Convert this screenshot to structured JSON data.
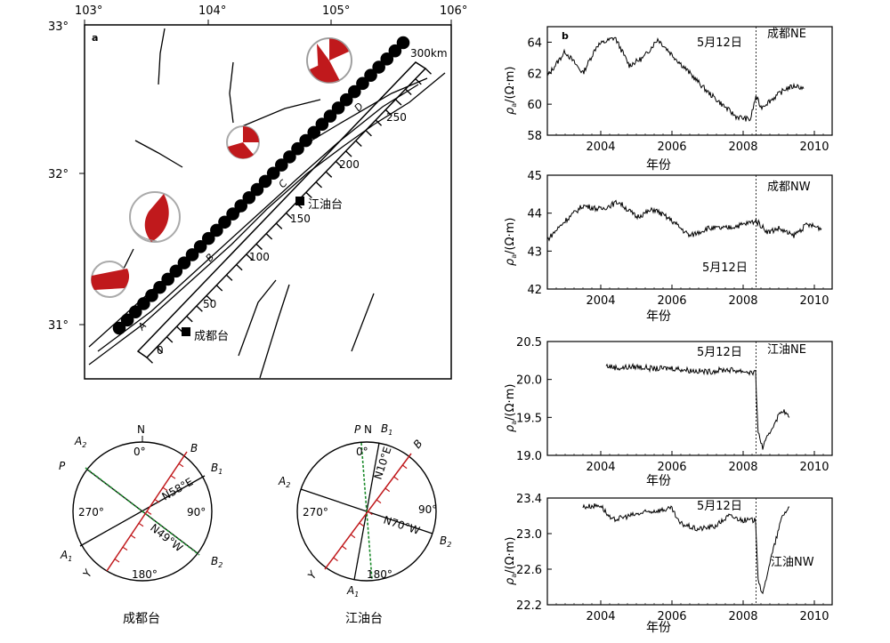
{
  "map": {
    "panel_label": "a",
    "lon_ticks": [
      "103°",
      "104°",
      "105°",
      "106°"
    ],
    "lat_ticks": [
      "33°",
      "32°",
      "31°"
    ],
    "distance_labels": [
      "0",
      "50",
      "100",
      "150",
      "200",
      "250",
      "300km"
    ],
    "segment_labels": [
      "A",
      "B",
      "C",
      "D"
    ],
    "stations": [
      "成都台",
      "江油台"
    ],
    "bead_count": 36,
    "mechanism_color": "#c0191c"
  },
  "rose": {
    "chengdu": {
      "title": "成都台",
      "labels": {
        "N": "N",
        "zero": "0°",
        "ninety": "90°",
        "oneeighty": "180°",
        "twoseventy": "270°",
        "A1": "A",
        "A1sub": "1",
        "A2": "A",
        "A2sub": "2",
        "B": "B",
        "B1": "B",
        "B1sub": "1",
        "B2": "B",
        "B2sub": "2",
        "P": "P",
        "Y": "Y",
        "dir1": "N58°E",
        "dir2": "N49°W"
      }
    },
    "jiangyou": {
      "title": "江油台",
      "labels": {
        "N": "N",
        "zero": "0°",
        "ninety": "90°",
        "oneeighty": "180°",
        "twoseventy": "270°",
        "A1": "A",
        "A1sub": "1",
        "A2": "A",
        "A2sub": "2",
        "B": "B",
        "B1": "B",
        "B1sub": "1",
        "B2": "B",
        "B2sub": "2",
        "P": "P",
        "Y": "Y",
        "dir1": "N10°E",
        "dir2": "N70°W"
      }
    }
  },
  "chart_data": [
    {
      "type": "line",
      "panel_label": "b",
      "title": "成都NE",
      "xlabel": "年份",
      "ylabel_rho": "ρ",
      "ylabel_sub": "a",
      "ylabel_unit": "/(Ω·m)",
      "x_range": [
        2002.5,
        2010.5
      ],
      "ylim": [
        58,
        65
      ],
      "xticks": [
        2004,
        2006,
        2008,
        2010
      ],
      "yticks": [
        58,
        60,
        62,
        64
      ],
      "event_x": 2008.36,
      "event_label": "5月12日",
      "series": [
        {
          "x": [
            2002.5,
            2003.0,
            2003.5,
            2003.9,
            2004.4,
            2004.8,
            2005.2,
            2005.6,
            2006.0,
            2006.5,
            2007.0,
            2007.5,
            2007.8,
            2008.2,
            2008.36,
            2008.5,
            2008.8,
            2009.2,
            2009.5,
            2009.7
          ],
          "y": [
            61.8,
            63.4,
            62.0,
            63.8,
            64.3,
            62.5,
            63.0,
            64.2,
            63.2,
            62.0,
            60.8,
            59.8,
            59.2,
            59.0,
            60.5,
            59.8,
            60.3,
            61.0,
            61.2,
            61.0
          ]
        }
      ]
    },
    {
      "type": "line",
      "title": "成都NW",
      "xlabel": "年份",
      "ylabel_rho": "ρ",
      "ylabel_sub": "a",
      "ylabel_unit": "/(Ω·m)",
      "x_range": [
        2002.5,
        2010.5
      ],
      "ylim": [
        42,
        45
      ],
      "xticks": [
        2004,
        2006,
        2008,
        2010
      ],
      "yticks": [
        42,
        43,
        44,
        45
      ],
      "event_x": 2008.36,
      "event_label": "5月12日",
      "series": [
        {
          "x": [
            2002.5,
            2003.0,
            2003.5,
            2004.0,
            2004.5,
            2005.0,
            2005.5,
            2006.0,
            2006.5,
            2007.0,
            2007.5,
            2008.0,
            2008.36,
            2008.7,
            2009.0,
            2009.4,
            2009.8,
            2010.2
          ],
          "y": [
            43.3,
            43.8,
            44.2,
            44.1,
            44.3,
            43.9,
            44.1,
            43.8,
            43.4,
            43.6,
            43.6,
            43.7,
            43.8,
            43.5,
            43.6,
            43.4,
            43.7,
            43.6
          ]
        }
      ]
    },
    {
      "type": "line",
      "title": "江油NE",
      "xlabel": "年份",
      "ylabel_rho": "ρ",
      "ylabel_sub": "a",
      "ylabel_unit": "/(Ω·m)",
      "x_range": [
        2002.5,
        2010.5
      ],
      "ylim": [
        19.0,
        20.5
      ],
      "xticks": [
        2004,
        2006,
        2008,
        2010
      ],
      "yticks": [
        19.0,
        19.5,
        20.0,
        20.5
      ],
      "event_x": 2008.36,
      "event_label": "5月12日",
      "series": [
        {
          "x": [
            2004.15,
            2004.5,
            2005.0,
            2005.5,
            2006.0,
            2006.5,
            2007.0,
            2007.5,
            2008.0,
            2008.35,
            2008.42,
            2008.55,
            2008.7,
            2008.9,
            2009.1,
            2009.3
          ],
          "y": [
            20.18,
            20.15,
            20.17,
            20.14,
            20.15,
            20.12,
            20.1,
            20.13,
            20.11,
            20.08,
            19.3,
            19.1,
            19.25,
            19.45,
            19.6,
            19.5
          ]
        }
      ]
    },
    {
      "type": "line",
      "title": "江油NW",
      "xlabel": "年份",
      "ylabel_rho": "ρ",
      "ylabel_sub": "a",
      "ylabel_unit": "/(Ω·m)",
      "x_range": [
        2002.5,
        2010.5
      ],
      "ylim": [
        22.2,
        23.4
      ],
      "xticks": [
        2004,
        2006,
        2008,
        2010
      ],
      "yticks": [
        22.2,
        22.6,
        23.0,
        23.4
      ],
      "event_x": 2008.36,
      "event_label": "5月12日",
      "series": [
        {
          "x": [
            2003.5,
            2004.0,
            2004.3,
            2004.8,
            2005.4,
            2006.0,
            2006.2,
            2006.7,
            2007.2,
            2007.6,
            2008.0,
            2008.35,
            2008.42,
            2008.55,
            2008.7,
            2008.9,
            2009.1,
            2009.3
          ],
          "y": [
            23.3,
            23.32,
            23.15,
            23.2,
            23.25,
            23.28,
            23.12,
            23.05,
            23.08,
            23.2,
            23.15,
            23.15,
            22.5,
            22.3,
            22.6,
            22.9,
            23.2,
            23.3
          ]
        }
      ]
    }
  ]
}
